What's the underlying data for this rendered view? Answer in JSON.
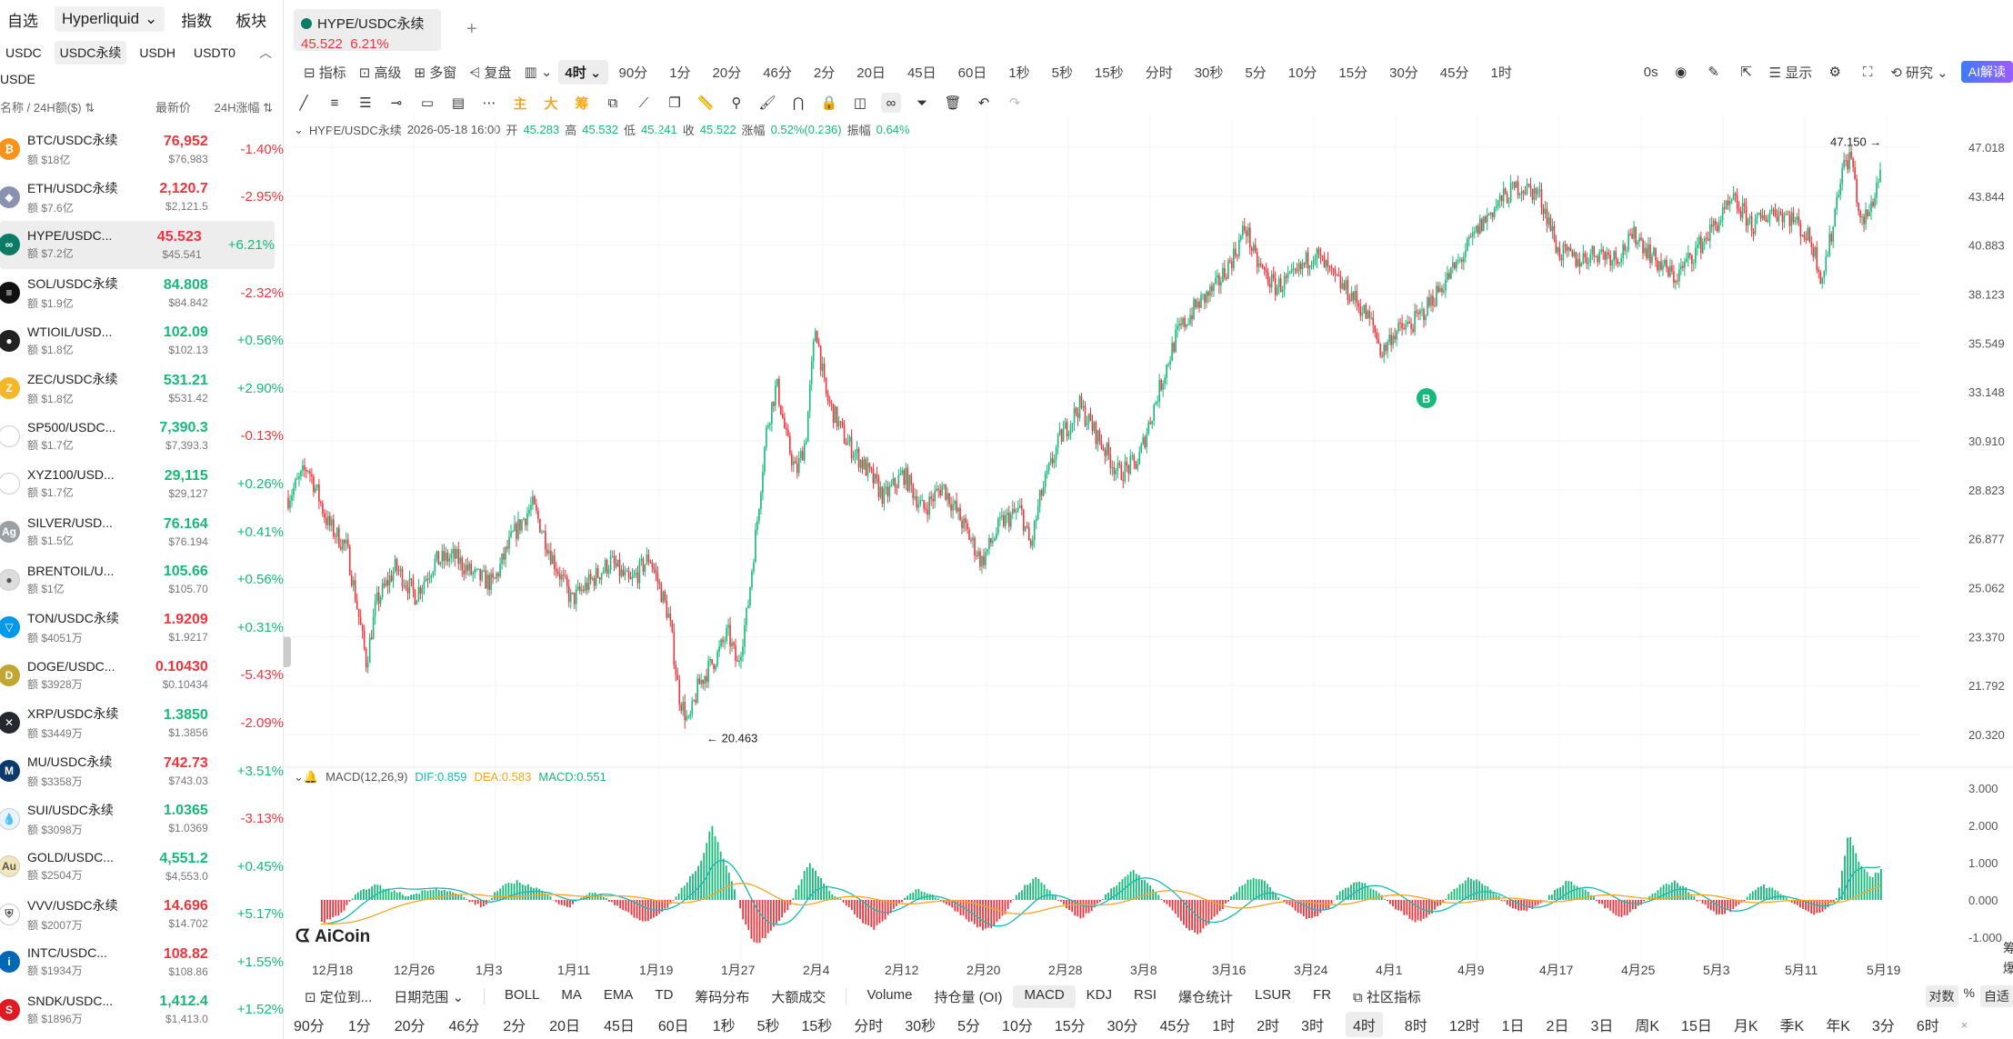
{
  "watchlist": {
    "top_tabs": [
      "自选",
      "Hyperliquid",
      "指数",
      "板块"
    ],
    "sub_tabs": [
      "USDC",
      "USDC永续",
      "USDH",
      "USDT0"
    ],
    "sub_tab2": "USDE",
    "headers": {
      "name": "名称",
      "vol": "24H额($)",
      "price": "最新价",
      "change": "24H涨幅"
    },
    "rows": [
      {
        "name": "BTC/USDC永续",
        "vol": "额 $18亿",
        "price": "76,952",
        "sub": "$76,983",
        "change": "-1.40%",
        "dir": "dn",
        "pdir": "dn",
        "color": "#f7931a",
        "glyph": "₿"
      },
      {
        "name": "ETH/USDC永续",
        "vol": "额 $7.6亿",
        "price": "2,120.7",
        "sub": "$2,121.5",
        "change": "-2.95%",
        "dir": "dn",
        "pdir": "dn",
        "color": "#8a92b2",
        "glyph": "◆"
      },
      {
        "name": "HYPE/USDC...",
        "vol": "额 $7.2亿",
        "price": "45.523",
        "sub": "$45.541",
        "change": "+6.21%",
        "dir": "up",
        "pdir": "dn",
        "color": "#0a7c66",
        "glyph": "∞"
      },
      {
        "name": "SOL/USDC永续",
        "vol": "额 $1.9亿",
        "price": "84.808",
        "sub": "$84.842",
        "change": "-2.32%",
        "dir": "dn",
        "pdir": "up",
        "color": "#111",
        "glyph": "≡"
      },
      {
        "name": "WTIOIL/USD...",
        "vol": "额 $1.8亿",
        "price": "102.09",
        "sub": "$102.13",
        "change": "+0.56%",
        "dir": "up",
        "pdir": "up",
        "color": "#222",
        "glyph": "●"
      },
      {
        "name": "ZEC/USDC永续",
        "vol": "额 $1.8亿",
        "price": "531.21",
        "sub": "$531.42",
        "change": "+2.90%",
        "dir": "up",
        "pdir": "up",
        "color": "#f4b728",
        "glyph": "Z"
      },
      {
        "name": "SP500/USDC...",
        "vol": "额 $1.7亿",
        "price": "7,390.3",
        "sub": "$7,393.3",
        "change": "-0.13%",
        "dir": "dn",
        "pdir": "up",
        "color": "#fff",
        "glyph": ""
      },
      {
        "name": "XYZ100/USD...",
        "vol": "额 $1.7亿",
        "price": "29,115",
        "sub": "$29,127",
        "change": "+0.26%",
        "dir": "up",
        "pdir": "up",
        "color": "#fff",
        "glyph": ""
      },
      {
        "name": "SILVER/USD...",
        "vol": "额 $1.5亿",
        "price": "76.164",
        "sub": "$76.194",
        "change": "+0.41%",
        "dir": "up",
        "pdir": "up",
        "color": "#9aa0a6",
        "glyph": "Ag"
      },
      {
        "name": "BRENTOIL/U...",
        "vol": "额 $1亿",
        "price": "105.66",
        "sub": "$105.70",
        "change": "+0.56%",
        "dir": "up",
        "pdir": "up",
        "color": "#ddd",
        "glyph": "●"
      },
      {
        "name": "TON/USDC永续",
        "vol": "额 $4051万",
        "price": "1.9209",
        "sub": "$1.9217",
        "change": "+0.31%",
        "dir": "up",
        "pdir": "dn",
        "color": "#0098ea",
        "glyph": "▽"
      },
      {
        "name": "DOGE/USDC...",
        "vol": "额 $3928万",
        "price": "0.10430",
        "sub": "$0.10434",
        "change": "-5.43%",
        "dir": "dn",
        "pdir": "dn",
        "color": "#c2a633",
        "glyph": "D"
      },
      {
        "name": "XRP/USDC永续",
        "vol": "额 $3449万",
        "price": "1.3850",
        "sub": "$1.3856",
        "change": "-2.09%",
        "dir": "dn",
        "pdir": "up",
        "color": "#23292f",
        "glyph": "✕"
      },
      {
        "name": "MU/USDC永续",
        "vol": "额 $3358万",
        "price": "742.73",
        "sub": "$743.03",
        "change": "+3.51%",
        "dir": "up",
        "pdir": "dn",
        "color": "#0d3a6e",
        "glyph": "M"
      },
      {
        "name": "SUI/USDC永续",
        "vol": "额 $3098万",
        "price": "1.0365",
        "sub": "$1.0369",
        "change": "-3.13%",
        "dir": "dn",
        "pdir": "up",
        "color": "#e8f4ff",
        "glyph": "💧"
      },
      {
        "name": "GOLD/USDC...",
        "vol": "额 $2504万",
        "price": "4,551.2",
        "sub": "$4,553.0",
        "change": "+0.45%",
        "dir": "up",
        "pdir": "up",
        "color": "#f2e5b8",
        "glyph": "Au"
      },
      {
        "name": "VVV/USDC永续",
        "vol": "额 $2007万",
        "price": "14.696",
        "sub": "$14.702",
        "change": "+5.17%",
        "dir": "up",
        "pdir": "dn",
        "color": "#fff",
        "glyph": "⛨"
      },
      {
        "name": "INTC/USDC...",
        "vol": "额 $1934万",
        "price": "108.82",
        "sub": "$108.86",
        "change": "+1.55%",
        "dir": "up",
        "pdir": "dn",
        "color": "#0068b5",
        "glyph": "i"
      },
      {
        "name": "SNDK/USDC...",
        "vol": "额 $1896万",
        "price": "1,412.4",
        "sub": "$1,413.0",
        "change": "+1.52%",
        "dir": "up",
        "pdir": "up",
        "color": "#e01a22",
        "glyph": "S"
      }
    ]
  },
  "tab": {
    "title": "HYPE/USDC永续",
    "price": "45.522",
    "change": "6.21%",
    "add": "+"
  },
  "toolbar1": {
    "left": [
      "指标",
      "高级",
      "多窗",
      "复盘"
    ],
    "selected_interval": "4时",
    "intervals": [
      "90分",
      "1分",
      "20分",
      "46分",
      "2分",
      "20日",
      "45日",
      "60日",
      "1秒",
      "5秒",
      "15秒",
      "分时",
      "30秒",
      "5分",
      "10分",
      "15分",
      "30分",
      "45分",
      "1时"
    ],
    "right": {
      "timer": "0s",
      "display": "显示",
      "research": "研究",
      "ai": "AI解读"
    }
  },
  "toolbar2": {
    "main": "主",
    "big": "大",
    "chip": "筹"
  },
  "ohlc": {
    "symbol": "HYPE/USDC永续",
    "time": "2026-05-18 16:00",
    "open_l": "开",
    "open": "45.283",
    "high_l": "高",
    "high": "45.532",
    "low_l": "低",
    "low": "45.241",
    "close_l": "收",
    "close": "45.522",
    "chg_l": "涨幅",
    "chg": "0.52%(0.236)",
    "amp_l": "振幅",
    "amp": "0.64%"
  },
  "macd": {
    "name": "MACD(12,26,9)",
    "dif": "DIF:0.859",
    "dea": "DEA:0.583",
    "macd": "MACD:0.551"
  },
  "watermark": "AiCoin",
  "chart_data": {
    "type": "line",
    "subtype": "candlestick",
    "price_axis_ticks": [
      "47.018",
      "43.844",
      "40.883",
      "38.123",
      "35.549",
      "33.148",
      "30.910",
      "28.823",
      "26.877",
      "25.062",
      "23.370",
      "21.792",
      "20.320"
    ],
    "macd_axis_ticks": [
      "3.000",
      "2.000",
      "1.000",
      "0.000",
      "-1.000"
    ],
    "x_ticks": [
      "12月18",
      "12月26",
      "1月3",
      "1月11",
      "1月19",
      "1月27",
      "2月4",
      "2月12",
      "2月20",
      "2月28",
      "3月8",
      "3月16",
      "3月24",
      "4月1",
      "4月9",
      "4月17",
      "4月25",
      "5月3",
      "5月11",
      "5月19"
    ],
    "scale": "log",
    "high_marker": "47.150 →",
    "low_marker": "← 20.463",
    "buy_marker": "B",
    "close_path": [
      [
        0,
        28.5
      ],
      [
        2,
        29.8
      ],
      [
        4,
        27.5
      ],
      [
        6,
        26.5
      ],
      [
        8,
        22.5
      ],
      [
        9,
        24.5
      ],
      [
        11,
        25.8
      ],
      [
        13,
        24.8
      ],
      [
        15,
        26.0
      ],
      [
        17,
        26.2
      ],
      [
        19,
        25.5
      ],
      [
        21,
        25.2
      ],
      [
        23,
        27.0
      ],
      [
        25,
        28.2
      ],
      [
        27,
        26.2
      ],
      [
        29,
        24.6
      ],
      [
        31,
        25.3
      ],
      [
        33,
        26.0
      ],
      [
        35,
        25.2
      ],
      [
        37,
        26.2
      ],
      [
        39,
        24.0
      ],
      [
        40,
        21.5
      ],
      [
        41,
        20.6
      ],
      [
        42,
        21.8
      ],
      [
        44,
        22.8
      ],
      [
        45,
        23.5
      ],
      [
        46,
        22.4
      ],
      [
        47,
        24.2
      ],
      [
        48,
        27.5
      ],
      [
        49,
        31.5
      ],
      [
        50,
        33.5
      ],
      [
        51,
        31.0
      ],
      [
        52,
        29.5
      ],
      [
        53,
        31.0
      ],
      [
        54,
        36.5
      ],
      [
        55,
        33.0
      ],
      [
        57,
        31.0
      ],
      [
        59,
        29.8
      ],
      [
        61,
        28.5
      ],
      [
        63,
        29.5
      ],
      [
        65,
        28.0
      ],
      [
        67,
        29.0
      ],
      [
        69,
        27.5
      ],
      [
        71,
        26.0
      ],
      [
        73,
        27.5
      ],
      [
        75,
        28.0
      ],
      [
        76,
        26.5
      ],
      [
        77,
        28.5
      ],
      [
        79,
        31.0
      ],
      [
        81,
        32.5
      ],
      [
        83,
        31.0
      ],
      [
        85,
        29.5
      ],
      [
        87,
        30.0
      ],
      [
        89,
        33.0
      ],
      [
        91,
        36.0
      ],
      [
        93,
        37.5
      ],
      [
        95,
        38.5
      ],
      [
        97,
        40.5
      ],
      [
        98,
        42.0
      ],
      [
        99,
        40.0
      ],
      [
        101,
        38.5
      ],
      [
        103,
        39.0
      ],
      [
        105,
        40.5
      ],
      [
        107,
        39.0
      ],
      [
        109,
        38.0
      ],
      [
        111,
        36.5
      ],
      [
        112,
        35.0
      ],
      [
        113,
        36.0
      ],
      [
        115,
        36.5
      ],
      [
        116,
        37.0
      ],
      [
        118,
        38.5
      ],
      [
        120,
        40.0
      ],
      [
        122,
        42.0
      ],
      [
        124,
        43.5
      ],
      [
        126,
        44.5
      ],
      [
        128,
        44.0
      ],
      [
        129,
        42.5
      ],
      [
        130,
        40.5
      ],
      [
        132,
        40.0
      ],
      [
        134,
        40.5
      ],
      [
        136,
        40.2
      ],
      [
        138,
        41.5
      ],
      [
        140,
        40.0
      ],
      [
        142,
        39.0
      ],
      [
        144,
        40.5
      ],
      [
        146,
        42.0
      ],
      [
        148,
        43.5
      ],
      [
        150,
        42.0
      ],
      [
        152,
        43.0
      ],
      [
        154,
        42.5
      ],
      [
        156,
        41.0
      ],
      [
        157,
        39.0
      ],
      [
        158,
        41.5
      ],
      [
        159,
        45.5
      ],
      [
        160,
        46.5
      ],
      [
        161,
        42.0
      ],
      [
        162,
        43.0
      ],
      [
        163,
        45.5
      ]
    ],
    "macd_hist": [
      -0.6,
      -0.5,
      -0.3,
      0.1,
      0.3,
      0.4,
      0.3,
      0.2,
      0.1,
      0.2,
      0.3,
      0.3,
      0.2,
      0.1,
      -0.1,
      -0.2,
      0.2,
      0.4,
      0.5,
      0.4,
      0.3,
      0.1,
      -0.1,
      -0.2,
      0.1,
      0.2,
      0.1,
      -0.1,
      -0.3,
      -0.5,
      -0.6,
      -0.4,
      -0.2,
      0.2,
      0.6,
      1.0,
      2.0,
      1.2,
      0.4,
      -0.6,
      -1.2,
      -1.0,
      -0.6,
      -0.3,
      0.4,
      1.0,
      0.6,
      0.2,
      0.0,
      -0.3,
      -0.6,
      -0.8,
      -0.5,
      -0.2,
      0.1,
      0.3,
      0.2,
      0.0,
      -0.2,
      -0.4,
      -0.6,
      -0.8,
      -0.7,
      -0.4,
      0.1,
      0.4,
      0.6,
      0.3,
      0.0,
      -0.3,
      -0.5,
      -0.3,
      0.0,
      0.3,
      0.6,
      0.8,
      0.5,
      0.2,
      -0.1,
      -0.4,
      -0.8,
      -0.9,
      -0.6,
      -0.3,
      0.1,
      0.4,
      0.6,
      0.5,
      0.2,
      -0.1,
      -0.3,
      -0.5,
      -0.4,
      -0.2,
      0.2,
      0.4,
      0.5,
      0.3,
      0.1,
      -0.2,
      -0.4,
      -0.6,
      -0.5,
      -0.2,
      0.1,
      0.4,
      0.6,
      0.5,
      0.3,
      0.0,
      -0.2,
      -0.3,
      -0.2,
      0.0,
      0.3,
      0.5,
      0.4,
      0.2,
      -0.1,
      -0.3,
      -0.5,
      -0.3,
      -0.1,
      0.2,
      0.4,
      0.5,
      0.3,
      0.0,
      -0.2,
      -0.4,
      -0.3,
      -0.1,
      0.2,
      0.4,
      0.3,
      0.1,
      -0.1,
      -0.3,
      -0.4,
      -0.2,
      0.1,
      1.8,
      1.0,
      0.6,
      0.8
    ]
  },
  "bottom1": {
    "left": [
      "定位到...",
      "日期范围"
    ],
    "indicators_main": [
      "BOLL",
      "MA",
      "EMA",
      "TD",
      "筹码分布",
      "大额成交"
    ],
    "indicators_sub": [
      "Volume",
      "持仓量 (OI)",
      "MACD",
      "KDJ",
      "RSI",
      "爆仓统计",
      "LSUR",
      "FR",
      "社区指标"
    ],
    "selected": "MACD",
    "right": [
      "对数",
      "%",
      "自适"
    ]
  },
  "bottom2": {
    "intervals": [
      "90分",
      "1分",
      "20分",
      "46分",
      "2分",
      "20日",
      "45日",
      "60日",
      "1秒",
      "5秒",
      "15秒",
      "分时",
      "30秒",
      "5分",
      "10分",
      "15分",
      "30分",
      "45分",
      "1时",
      "2时",
      "3时",
      "4时",
      "8时",
      "12时",
      "1日",
      "2日",
      "3日",
      "周K",
      "15日",
      "月K",
      "季K",
      "年K",
      "3分",
      "6时"
    ],
    "selected": "4时",
    "close": "×"
  },
  "right_edge": {
    "label1": "筹",
    "label2": "爆"
  }
}
